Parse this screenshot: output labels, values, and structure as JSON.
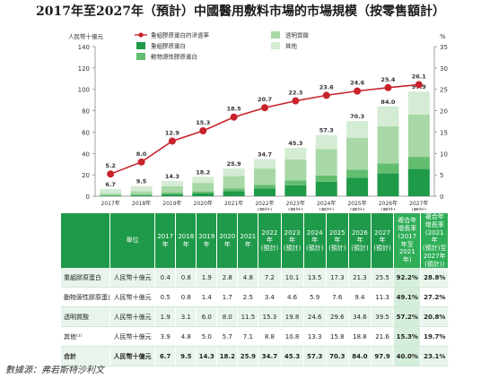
{
  "page": {
    "title": "2017年至2027年（預計）中國醫用敷料市場的市場規模（按零售額計）",
    "source": "數據源：弗若斯特沙利文"
  },
  "colors": {
    "dark_green": "#1e9a48",
    "mid_green": "#62bd6f",
    "light_green": "#a7d8a5",
    "pale_green": "#d4ecd3",
    "line_red": "#c8232c"
  },
  "chart_data": {
    "type": "bar",
    "stacked": true,
    "left_axis_label": "人民幣十億元",
    "right_axis_label": "%",
    "left_ylim": [
      0,
      140
    ],
    "left_ticks": [
      0,
      20,
      40,
      60,
      80,
      100,
      120,
      140
    ],
    "right_ylim": [
      0,
      35
    ],
    "right_ticks": [
      0,
      5,
      10,
      15,
      20,
      25,
      30,
      35
    ],
    "categories": [
      "2017年",
      "2018年",
      "2019年",
      "2020年",
      "2021年",
      "2022年\n(預計)",
      "2023年\n(預計)",
      "2024年\n(預計)",
      "2025年\n(預計)",
      "2026年\n(預計)",
      "2027年\n(預計)"
    ],
    "series": [
      {
        "name": "重組膠原蛋白",
        "color": "#1e9a48",
        "values": [
          0.4,
          0.8,
          1.9,
          2.8,
          4.8,
          7.2,
          10.1,
          13.5,
          17.3,
          21.3,
          25.5
        ]
      },
      {
        "name": "動物源性膠原蛋白",
        "color": "#62bd6f",
        "values": [
          0.5,
          0.8,
          1.4,
          1.7,
          2.5,
          3.4,
          4.6,
          5.9,
          7.6,
          9.4,
          11.3
        ]
      },
      {
        "name": "透明質酸",
        "color": "#a7d8a5",
        "values": [
          1.9,
          3.1,
          6.0,
          8.0,
          11.5,
          15.3,
          19.8,
          24.6,
          29.6,
          34.6,
          39.5
        ]
      },
      {
        "name": "其他",
        "color": "#d4ecd3",
        "values": [
          3.9,
          4.8,
          5.0,
          5.7,
          7.1,
          8.8,
          10.8,
          13.3,
          15.8,
          18.8,
          21.6
        ]
      }
    ],
    "totals": [
      6.7,
      9.5,
      14.3,
      18.2,
      25.9,
      34.7,
      45.3,
      57.3,
      70.3,
      84.0,
      97.9
    ],
    "line": {
      "name": "重組膠原蛋白的滲透率",
      "axis": "right",
      "values": [
        5.2,
        8.0,
        12.9,
        15.3,
        18.5,
        20.7,
        22.3,
        23.6,
        24.6,
        25.4,
        26.1
      ]
    },
    "legend_position": "top"
  },
  "table": {
    "headers": [
      "",
      "單位",
      "2017年",
      "2018年",
      "2019年",
      "2020年",
      "2021年",
      "2022年\n(預計)",
      "2023年\n(預計)",
      "2024年\n(預計)",
      "2025年\n(預計)",
      "2026年\n(預計)",
      "2027年\n(預計)",
      "複合年\n增長率\n(2017年至\n2021年)",
      "複合年增長率\n(2021年\n(預計)至\n2027年\n(預計))"
    ],
    "rows": [
      [
        "重組膠原蛋白",
        "人民幣十億元",
        "0.4",
        "0.8",
        "1.9",
        "2.8",
        "4.8",
        "7.2",
        "10.1",
        "13.5",
        "17.3",
        "21.3",
        "25.5",
        "92.2%",
        "28.8%"
      ],
      [
        "動物源性膠原蛋白",
        "人民幣十億元",
        "0.5",
        "0.8",
        "1.4",
        "1.7",
        "2.5",
        "3.4",
        "4.6",
        "5.9",
        "7.6",
        "9.4",
        "11.3",
        "49.1%",
        "27.2%"
      ],
      [
        "透明質酸",
        "人民幣十億元",
        "1.9",
        "3.1",
        "6.0",
        "8.0",
        "11.5",
        "15.3",
        "19.8",
        "24.6",
        "29.6",
        "34.6",
        "39.5",
        "57.2%",
        "20.8%"
      ],
      [
        "其他⁽¹⁾",
        "人民幣十億元",
        "3.9",
        "4.8",
        "5.0",
        "5.7",
        "7.1",
        "8.8",
        "10.8",
        "13.3",
        "15.8",
        "18.8",
        "21.6",
        "15.3%",
        "19.7%"
      ],
      [
        "合計",
        "人民幣十億元",
        "6.7",
        "9.5",
        "14.3",
        "18.2",
        "25.9",
        "34.7",
        "45.3",
        "57.3",
        "70.3",
        "84.0",
        "97.9",
        "40.0%",
        "23.1%"
      ]
    ]
  }
}
